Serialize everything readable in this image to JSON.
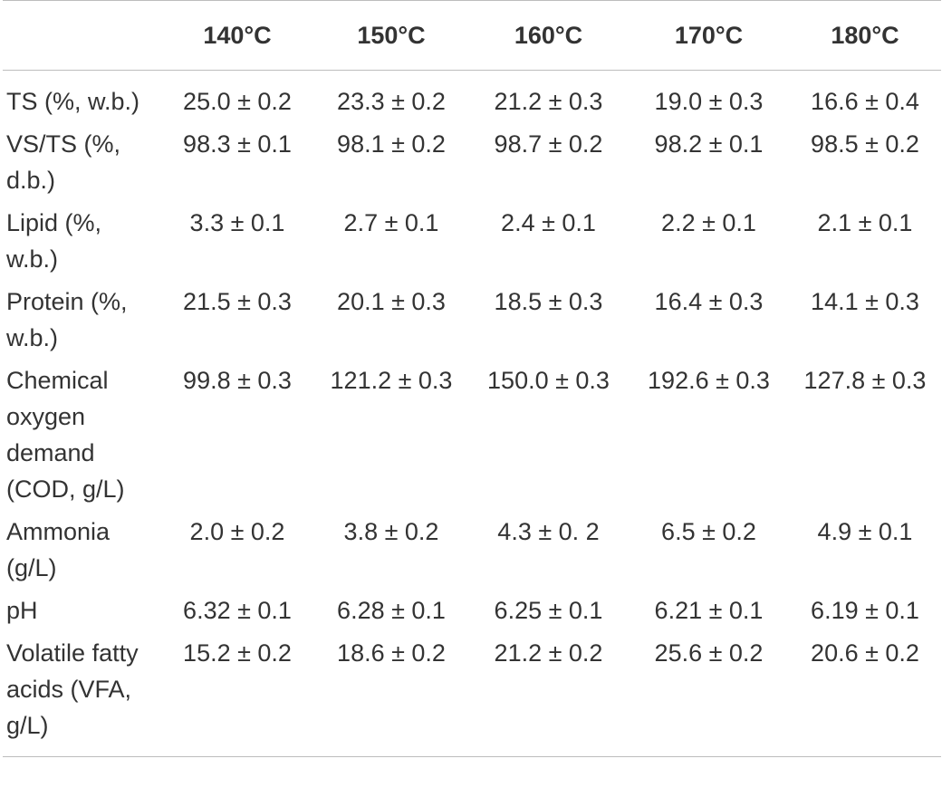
{
  "table": {
    "columns": [
      "",
      "140°C",
      "150°C",
      "160°C",
      "170°C",
      "180°C"
    ],
    "rows": [
      {
        "label": "TS (%, w.b.)",
        "values": [
          "25.0 ± 0.2",
          "23.3 ± 0.2",
          "21.2 ± 0.3",
          "19.0 ± 0.3",
          "16.6 ± 0.4"
        ]
      },
      {
        "label": "VS/TS (%, d.b.)",
        "values": [
          "98.3 ± 0.1",
          "98.1 ± 0.2",
          "98.7 ± 0.2",
          "98.2 ± 0.1",
          "98.5 ± 0.2"
        ]
      },
      {
        "label": "Lipid (%, w.b.)",
        "values": [
          "3.3 ± 0.1",
          "2.7 ± 0.1",
          "2.4 ± 0.1",
          "2.2 ± 0.1",
          "2.1 ± 0.1"
        ]
      },
      {
        "label": "Protein (%, w.b.)",
        "values": [
          "21.5 ± 0.3",
          "20.1 ± 0.3",
          "18.5 ± 0.3",
          "16.4 ± 0.3",
          "14.1 ± 0.3"
        ]
      },
      {
        "label": "Chemical oxygen demand (COD, g/L)",
        "values": [
          "99.8 ± 0.3",
          "121.2 ± 0.3",
          "150.0 ± 0.3",
          "192.6 ± 0.3",
          "127.8 ± 0.3"
        ]
      },
      {
        "label": "Ammonia (g/L)",
        "values": [
          "2.0 ± 0.2",
          "3.8 ± 0.2",
          "4.3 ± 0. 2",
          "6.5 ± 0.2",
          "4.9 ± 0.1"
        ]
      },
      {
        "label": "pH",
        "values": [
          "6.32 ± 0.1",
          "6.28 ± 0.1",
          "6.25 ± 0.1",
          "6.21 ± 0.1",
          "6.19 ± 0.1"
        ]
      },
      {
        "label": "Volatile fatty acids (VFA, g/L)",
        "values": [
          "15.2 ± 0.2",
          "18.6 ± 0.2",
          "21.2 ± 0.2",
          "25.6 ± 0.2",
          "20.6 ± 0.2"
        ]
      }
    ]
  }
}
